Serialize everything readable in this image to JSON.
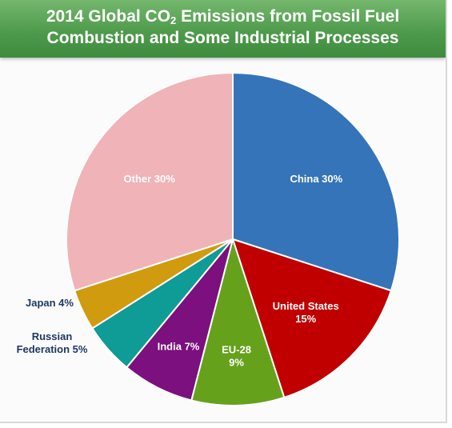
{
  "chart_data": {
    "type": "pie",
    "title_line_1_prefix": "2014 Global CO",
    "title_line_1_sub": "2",
    "title_line_1_suffix": " Emissions from Fossil Fuel",
    "title_line_2": "Combustion and Some Industrial Processes",
    "slices": [
      {
        "name": "China",
        "value": 30,
        "color": "#3574b8",
        "label_lines": [
          "China 30%"
        ],
        "label_placement": "inside",
        "label_color": "#ffffff"
      },
      {
        "name": "United States",
        "value": 15,
        "color": "#c00000",
        "label_lines": [
          "United States",
          "15%"
        ],
        "label_placement": "inside",
        "label_color": "#ffffff"
      },
      {
        "name": "EU-28",
        "value": 9,
        "color": "#66a11c",
        "label_lines": [
          "EU-28",
          "9%"
        ],
        "label_placement": "inside",
        "label_color": "#ffffff"
      },
      {
        "name": "India",
        "value": 7,
        "color": "#7b107e",
        "label_lines": [
          "India 7%"
        ],
        "label_placement": "inside",
        "label_color": "#ffffff"
      },
      {
        "name": "Russian Federation",
        "value": 5,
        "color": "#0f9b96",
        "label_lines": [
          "Russian",
          "Federation 5%"
        ],
        "label_placement": "outside",
        "label_color": "#1f3864"
      },
      {
        "name": "Japan",
        "value": 4,
        "color": "#d09b0e",
        "label_lines": [
          "Japan 4%"
        ],
        "label_placement": "outside",
        "label_color": "#1f3864"
      },
      {
        "name": "Other",
        "value": 30,
        "color": "#f0b3b8",
        "label_lines": [
          "Other 30%"
        ],
        "label_placement": "inside",
        "label_color": "#ffffff"
      }
    ]
  }
}
